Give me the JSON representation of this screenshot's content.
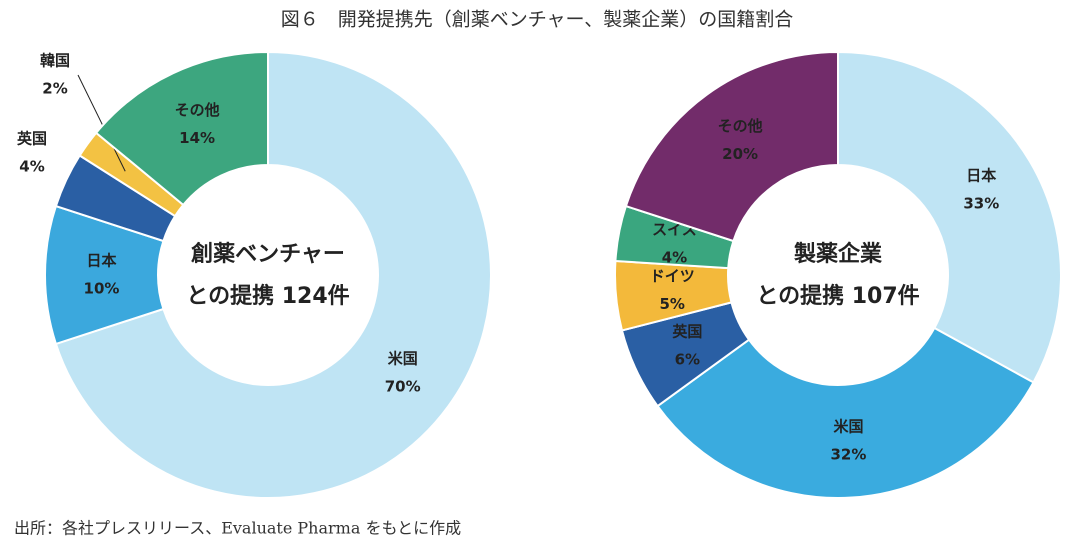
{
  "title": "図６　開発提携先（創薬ベンチャー、製薬企業）の国籍割合",
  "chart_data": [
    {
      "type": "donut",
      "center_text": [
        "創薬ベンチャー",
        "との提携 124件"
      ],
      "categories": [
        "米国",
        "日本",
        "英国",
        "韓国",
        "その他"
      ],
      "values": [
        70,
        10,
        4,
        2,
        14
      ],
      "value_labels": [
        "70%",
        "10%",
        "4%",
        "2%",
        "14%"
      ],
      "colors": [
        "#bfe4f4",
        "#3ba8dd",
        "#2a5fa4",
        "#f3c243",
        "#3da67f"
      ]
    },
    {
      "type": "donut",
      "center_text": [
        "製薬企業",
        "との提携 107件"
      ],
      "categories": [
        "日本",
        "米国",
        "英国",
        "ドイツ",
        "スイス",
        "その他"
      ],
      "values": [
        33,
        32,
        6,
        5,
        4,
        20
      ],
      "value_labels": [
        "33%",
        "32%",
        "6%",
        "5%",
        "4%",
        "20%"
      ],
      "colors": [
        "#bfe4f4",
        "#3aabdf",
        "#2a5fa4",
        "#f3b93b",
        "#3aa67f",
        "#722c6a"
      ]
    }
  ],
  "source": "出所：各社プレスリリース、Evaluate Pharma をもとに作成"
}
